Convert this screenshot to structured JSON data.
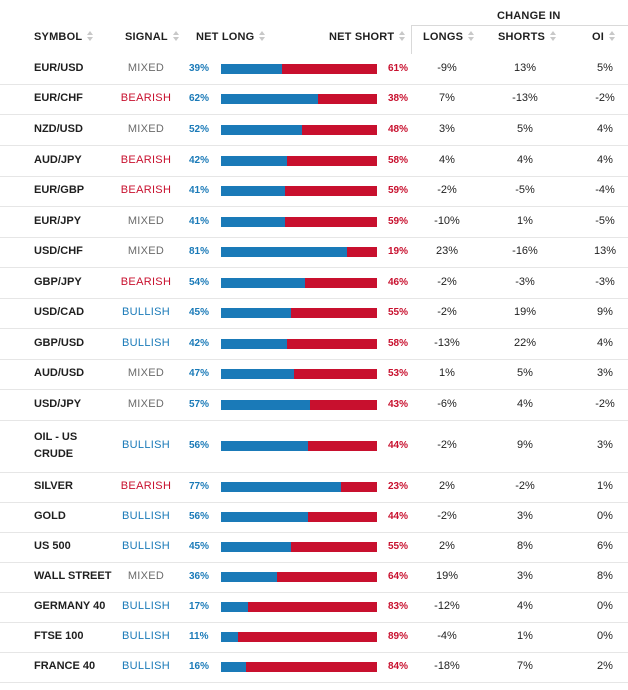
{
  "header": {
    "symbol": "SYMBOL",
    "signal": "SIGNAL",
    "net_long": "NET LONG",
    "net_short": "NET SHORT",
    "change_in": "CHANGE IN",
    "longs": "LONGS",
    "shorts": "SHORTS",
    "oi": "OI"
  },
  "colors": {
    "long": "#1a7ab8",
    "short": "#c8102e",
    "mixed": "#6b6b6b"
  },
  "rows": [
    {
      "symbol": "EUR/USD",
      "signal": "MIXED",
      "net_long": "39%",
      "net_short": "61%",
      "long_frac": 0.39,
      "ch_longs": "-9%",
      "ch_shorts": "13%",
      "ch_oi": "5%"
    },
    {
      "symbol": "EUR/CHF",
      "signal": "BEARISH",
      "net_long": "62%",
      "net_short": "38%",
      "long_frac": 0.62,
      "ch_longs": "7%",
      "ch_shorts": "-13%",
      "ch_oi": "-2%"
    },
    {
      "symbol": "NZD/USD",
      "signal": "MIXED",
      "net_long": "52%",
      "net_short": "48%",
      "long_frac": 0.52,
      "ch_longs": "3%",
      "ch_shorts": "5%",
      "ch_oi": "4%"
    },
    {
      "symbol": "AUD/JPY",
      "signal": "BEARISH",
      "net_long": "42%",
      "net_short": "58%",
      "long_frac": 0.42,
      "ch_longs": "4%",
      "ch_shorts": "4%",
      "ch_oi": "4%"
    },
    {
      "symbol": "EUR/GBP",
      "signal": "BEARISH",
      "net_long": "41%",
      "net_short": "59%",
      "long_frac": 0.41,
      "ch_longs": "-2%",
      "ch_shorts": "-5%",
      "ch_oi": "-4%"
    },
    {
      "symbol": "EUR/JPY",
      "signal": "MIXED",
      "net_long": "41%",
      "net_short": "59%",
      "long_frac": 0.41,
      "ch_longs": "-10%",
      "ch_shorts": "1%",
      "ch_oi": "-5%"
    },
    {
      "symbol": "USD/CHF",
      "signal": "MIXED",
      "net_long": "81%",
      "net_short": "19%",
      "long_frac": 0.81,
      "ch_longs": "23%",
      "ch_shorts": "-16%",
      "ch_oi": "13%"
    },
    {
      "symbol": "GBP/JPY",
      "signal": "BEARISH",
      "net_long": "54%",
      "net_short": "46%",
      "long_frac": 0.54,
      "ch_longs": "-2%",
      "ch_shorts": "-3%",
      "ch_oi": "-3%"
    },
    {
      "symbol": "USD/CAD",
      "signal": "BULLISH",
      "net_long": "45%",
      "net_short": "55%",
      "long_frac": 0.45,
      "ch_longs": "-2%",
      "ch_shorts": "19%",
      "ch_oi": "9%"
    },
    {
      "symbol": "GBP/USD",
      "signal": "BULLISH",
      "net_long": "42%",
      "net_short": "58%",
      "long_frac": 0.42,
      "ch_longs": "-13%",
      "ch_shorts": "22%",
      "ch_oi": "4%"
    },
    {
      "symbol": "AUD/USD",
      "signal": "MIXED",
      "net_long": "47%",
      "net_short": "53%",
      "long_frac": 0.47,
      "ch_longs": "1%",
      "ch_shorts": "5%",
      "ch_oi": "3%"
    },
    {
      "symbol": "USD/JPY",
      "signal": "MIXED",
      "net_long": "57%",
      "net_short": "43%",
      "long_frac": 0.57,
      "ch_longs": "-6%",
      "ch_shorts": "4%",
      "ch_oi": "-2%"
    },
    {
      "symbol": "OIL - US CRUDE",
      "symbol_line1": "OIL - US",
      "symbol_line2": "CRUDE",
      "signal": "BULLISH",
      "net_long": "56%",
      "net_short": "44%",
      "long_frac": 0.56,
      "ch_longs": "-2%",
      "ch_shorts": "9%",
      "ch_oi": "3%"
    },
    {
      "symbol": "SILVER",
      "signal": "BEARISH",
      "net_long": "77%",
      "net_short": "23%",
      "long_frac": 0.77,
      "ch_longs": "2%",
      "ch_shorts": "-2%",
      "ch_oi": "1%"
    },
    {
      "symbol": "GOLD",
      "signal": "BULLISH",
      "net_long": "56%",
      "net_short": "44%",
      "long_frac": 0.56,
      "ch_longs": "-2%",
      "ch_shorts": "3%",
      "ch_oi": "0%"
    },
    {
      "symbol": "US 500",
      "signal": "BULLISH",
      "net_long": "45%",
      "net_short": "55%",
      "long_frac": 0.45,
      "ch_longs": "2%",
      "ch_shorts": "8%",
      "ch_oi": "6%"
    },
    {
      "symbol": "WALL STREET",
      "signal": "MIXED",
      "net_long": "36%",
      "net_short": "64%",
      "long_frac": 0.36,
      "ch_longs": "19%",
      "ch_shorts": "3%",
      "ch_oi": "8%"
    },
    {
      "symbol": "GERMANY 40",
      "signal": "BULLISH",
      "net_long": "17%",
      "net_short": "83%",
      "long_frac": 0.17,
      "ch_longs": "-12%",
      "ch_shorts": "4%",
      "ch_oi": "0%"
    },
    {
      "symbol": "FTSE 100",
      "signal": "BULLISH",
      "net_long": "11%",
      "net_short": "89%",
      "long_frac": 0.11,
      "ch_longs": "-4%",
      "ch_shorts": "1%",
      "ch_oi": "0%"
    },
    {
      "symbol": "FRANCE 40",
      "signal": "BULLISH",
      "net_long": "16%",
      "net_short": "84%",
      "long_frac": 0.16,
      "ch_longs": "-18%",
      "ch_shorts": "7%",
      "ch_oi": "2%"
    }
  ]
}
